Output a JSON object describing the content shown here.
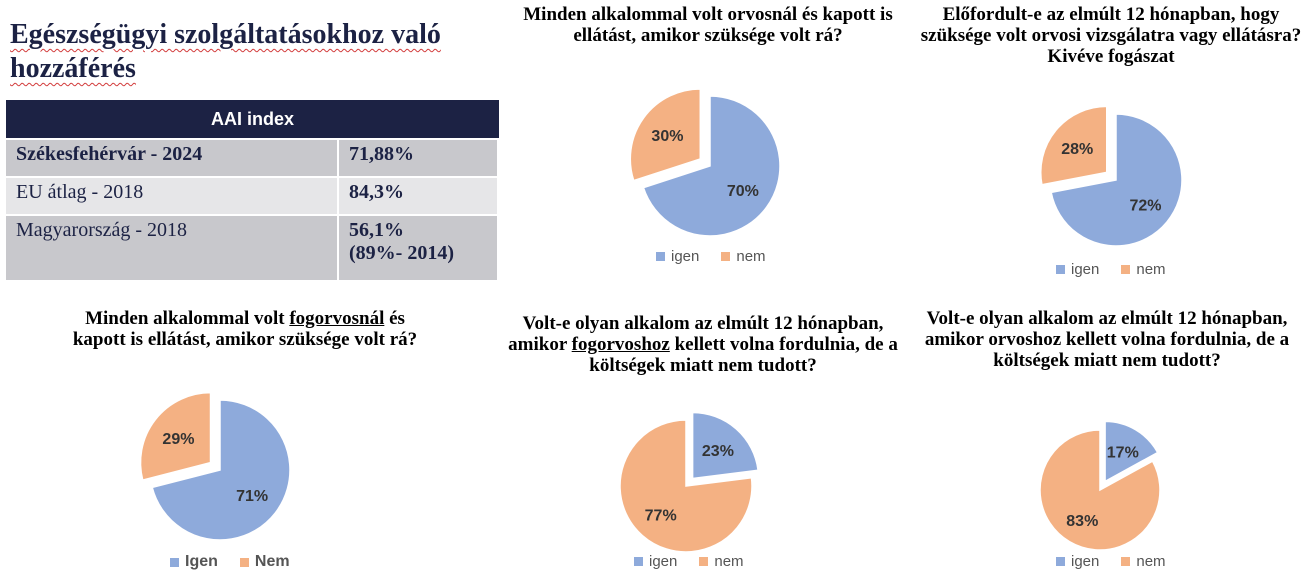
{
  "title": "Egészségügyi szolgáltatásokhoz való hozzáférés",
  "table": {
    "header": "AAI index",
    "rows": [
      {
        "label": "Székesfehérvár - 2024",
        "value": "71,88%",
        "value2": ""
      },
      {
        "label": "EU átlag - 2018",
        "value": "84,3%",
        "value2": ""
      },
      {
        "label": "Magyarország - 2018",
        "value": "56,1%",
        "value2": "(89%- 2014)"
      }
    ]
  },
  "colors": {
    "igen": "#8eaadb",
    "nem": "#f4b183"
  },
  "chart_data": [
    {
      "type": "pie",
      "title_parts": [
        "Minden alkalommal volt orvosnál és kapott is ellátást, amikor szüksége volt rá?"
      ],
      "categories": [
        "igen",
        "nem"
      ],
      "values": [
        70,
        30
      ],
      "labels": [
        "70%",
        "30%"
      ],
      "exploded": "nem",
      "legend": "bottom"
    },
    {
      "type": "pie",
      "title_parts": [
        "Előfordult-e az elmúlt 12 hónapban, hogy szüksége volt orvosi vizsgálatra vagy ellátásra? Kivéve fogászat"
      ],
      "categories": [
        "igen",
        "nem"
      ],
      "values": [
        72,
        28
      ],
      "labels": [
        "72%",
        "28%"
      ],
      "exploded": "nem",
      "legend": "bottom"
    },
    {
      "type": "pie",
      "title_parts": [
        "Minden alkalommal volt ",
        "fogorvosnál",
        " és kapott is ellátást, amikor szüksége volt rá?"
      ],
      "categories": [
        "Igen",
        "Nem"
      ],
      "values": [
        71,
        29
      ],
      "labels": [
        "71%",
        "29%"
      ],
      "exploded": "Nem",
      "legend": "bottom"
    },
    {
      "type": "pie",
      "title_parts": [
        "Volt-e olyan alkalom az elmúlt 12 hónapban, amikor ",
        "fogorvoshoz",
        " kellett volna fordulnia, de a költségek miatt nem tudott?"
      ],
      "categories": [
        "igen",
        "nem"
      ],
      "values": [
        23,
        77
      ],
      "labels": [
        "23%",
        "77%"
      ],
      "exploded": "igen",
      "legend": "bottom"
    },
    {
      "type": "pie",
      "title_parts": [
        "Volt-e olyan alkalom az elmúlt 12 hónapban, amikor orvoshoz kellett volna fordulnia, de a költségek miatt nem tudott?"
      ],
      "categories": [
        "igen",
        "nem"
      ],
      "values": [
        17,
        83
      ],
      "labels": [
        "17%",
        "83%"
      ],
      "exploded": "igen",
      "legend": "bottom"
    }
  ]
}
